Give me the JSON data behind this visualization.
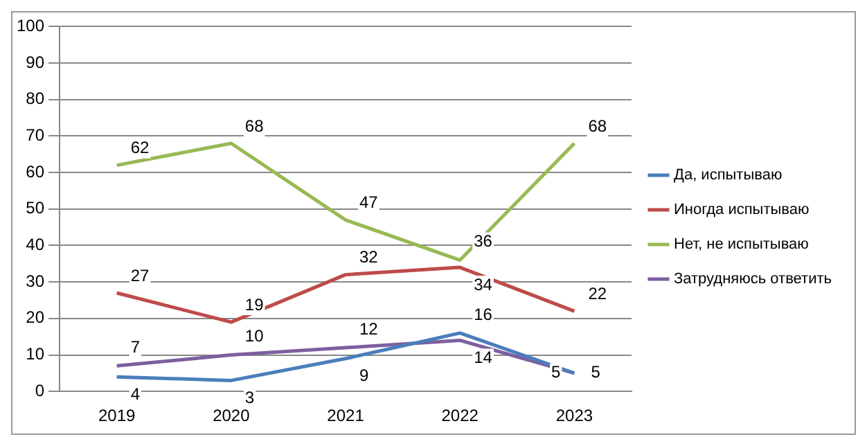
{
  "chart_data": {
    "type": "line",
    "categories": [
      "2019",
      "2020",
      "2021",
      "2022",
      "2023"
    ],
    "series": [
      {
        "name": "Да, испытываю",
        "color": "#4a7ebb",
        "values": [
          4,
          3,
          9,
          16,
          5
        ]
      },
      {
        "name": "Иногда испытываю",
        "color": "#be4b48",
        "values": [
          27,
          19,
          32,
          34,
          22
        ]
      },
      {
        "name": "Нет, не испытываю",
        "color": "#98b954",
        "values": [
          62,
          68,
          47,
          36,
          68
        ]
      },
      {
        "name": "Затрудняюсь ответить",
        "color": "#7d5fa0",
        "values": [
          7,
          10,
          12,
          14,
          5
        ]
      }
    ],
    "ylim": [
      0,
      100
    ],
    "yticks": [
      0,
      10,
      20,
      30,
      40,
      50,
      60,
      70,
      80,
      90,
      100
    ],
    "grid": "y",
    "legend": "right",
    "data_labels": true,
    "marker": "none",
    "line_style": "solid"
  }
}
